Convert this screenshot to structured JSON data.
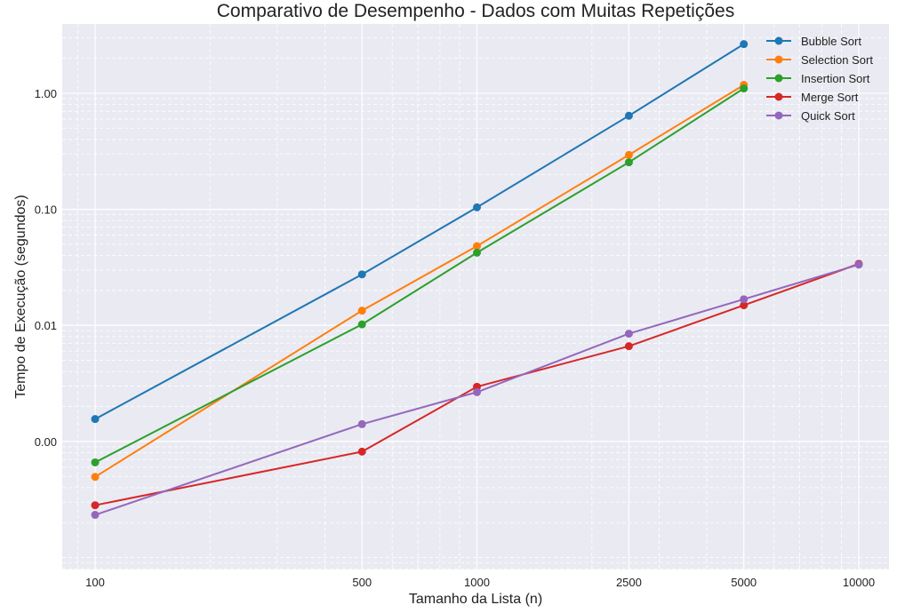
{
  "chart_data": {
    "type": "line",
    "title": "Comparativo de Desempenho - Dados com Muitas Repetições",
    "xlabel": "Tamanho da Lista (n)",
    "ylabel": "Tempo de Execução (segundos)",
    "x_scale": "log",
    "y_scale": "log",
    "xlim": [
      82,
      12000
    ],
    "ylim": [
      7.89e-05,
      3.95
    ],
    "x_ticks": [
      100,
      500,
      1000,
      2500,
      5000,
      10000
    ],
    "x_tick_labels": [
      "100",
      "500",
      "1000",
      "2500",
      "5000",
      "10000"
    ],
    "y_ticks": [
      0.001,
      0.01,
      0.1,
      1.0
    ],
    "y_tick_labels": [
      "0.00",
      "0.01",
      "0.10",
      "1.00"
    ],
    "grid": true,
    "legend_position": "top-right",
    "series": [
      {
        "name": "Bubble Sort",
        "color": "#1f77b4",
        "x": [
          100,
          500,
          1000,
          2500,
          5000
        ],
        "y": [
          0.00156,
          0.0275,
          0.104,
          0.64,
          2.65
        ]
      },
      {
        "name": "Selection Sort",
        "color": "#ff7f0e",
        "x": [
          100,
          500,
          1000,
          2500,
          5000
        ],
        "y": [
          0.000495,
          0.0134,
          0.0482,
          0.294,
          1.18
        ]
      },
      {
        "name": "Insertion Sort",
        "color": "#2ca02c",
        "x": [
          100,
          500,
          1000,
          2500,
          5000
        ],
        "y": [
          0.00066,
          0.0102,
          0.0423,
          0.254,
          1.1
        ]
      },
      {
        "name": "Merge Sort",
        "color": "#d62728",
        "x": [
          100,
          500,
          1000,
          2500,
          5000,
          10000
        ],
        "y": [
          0.000282,
          0.000817,
          0.00296,
          0.00662,
          0.0149,
          0.0339
        ]
      },
      {
        "name": "Quick Sort",
        "color": "#9467bd",
        "x": [
          100,
          500,
          1000,
          2500,
          5000,
          10000
        ],
        "y": [
          0.000233,
          0.00141,
          0.00266,
          0.00848,
          0.0168,
          0.0334
        ]
      }
    ]
  }
}
